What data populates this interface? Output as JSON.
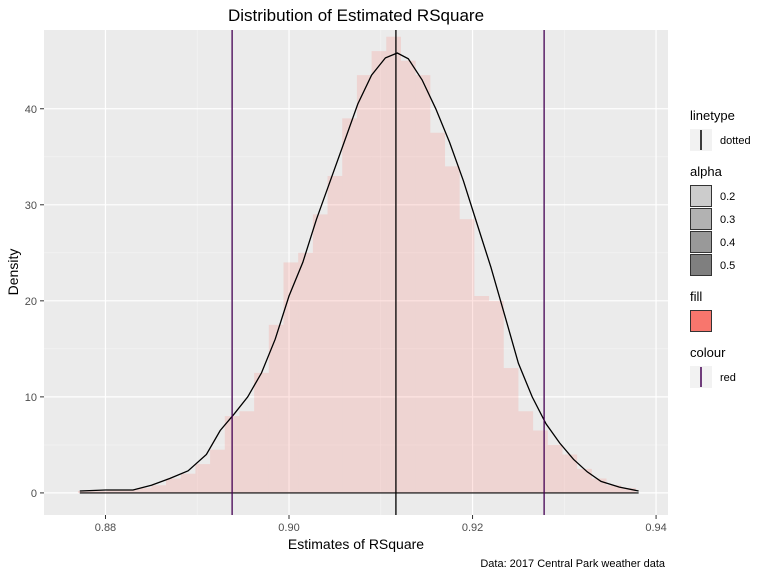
{
  "chart_data": {
    "type": "histogram-density",
    "title": "Distribution of Estimated RSquare",
    "xlabel": "Estimates of RSquare",
    "ylabel": "Density",
    "caption": "Data: 2017 Central Park weather data",
    "xlim": [
      0.8733,
      0.9413
    ],
    "ylim": [
      -2.3,
      48.2
    ],
    "x_ticks": [
      0.88,
      0.9,
      0.92,
      0.94
    ],
    "x_tick_labels": [
      "0.88",
      "0.90",
      "0.92",
      "0.94"
    ],
    "y_ticks": [
      0,
      10,
      20,
      30,
      40
    ],
    "y_tick_labels": [
      "0",
      "10",
      "20",
      "30",
      "40"
    ],
    "grid": true,
    "legend_position": "right",
    "histogram": {
      "fill": "#F8766D",
      "alpha": 0.2,
      "bin_width": 0.0016,
      "bins": [
        {
          "x": 0.8778,
          "y": 0.2
        },
        {
          "x": 0.8794,
          "y": 0.2
        },
        {
          "x": 0.881,
          "y": 0.3
        },
        {
          "x": 0.8826,
          "y": 0.3
        },
        {
          "x": 0.8842,
          "y": 0.5
        },
        {
          "x": 0.8858,
          "y": 0.8
        },
        {
          "x": 0.8874,
          "y": 1.5
        },
        {
          "x": 0.889,
          "y": 2.0
        },
        {
          "x": 0.8906,
          "y": 3.0
        },
        {
          "x": 0.8922,
          "y": 4.5
        },
        {
          "x": 0.8938,
          "y": 8.0
        },
        {
          "x": 0.8954,
          "y": 8.5
        },
        {
          "x": 0.897,
          "y": 12.5
        },
        {
          "x": 0.8986,
          "y": 17.5
        },
        {
          "x": 0.9002,
          "y": 24.0
        },
        {
          "x": 0.9018,
          "y": 25.0
        },
        {
          "x": 0.9034,
          "y": 29.0
        },
        {
          "x": 0.905,
          "y": 33.0
        },
        {
          "x": 0.9066,
          "y": 39.0
        },
        {
          "x": 0.9082,
          "y": 43.5
        },
        {
          "x": 0.9098,
          "y": 46.0
        },
        {
          "x": 0.9114,
          "y": 47.5
        },
        {
          "x": 0.913,
          "y": 45.0
        },
        {
          "x": 0.9146,
          "y": 43.5
        },
        {
          "x": 0.9162,
          "y": 37.5
        },
        {
          "x": 0.9178,
          "y": 34.0
        },
        {
          "x": 0.9194,
          "y": 28.5
        },
        {
          "x": 0.921,
          "y": 20.5
        },
        {
          "x": 0.9226,
          "y": 20.0
        },
        {
          "x": 0.9242,
          "y": 13.0
        },
        {
          "x": 0.9258,
          "y": 8.5
        },
        {
          "x": 0.9274,
          "y": 6.5
        },
        {
          "x": 0.929,
          "y": 5.0
        },
        {
          "x": 0.9306,
          "y": 4.0
        },
        {
          "x": 0.9322,
          "y": 2.5
        },
        {
          "x": 0.9338,
          "y": 1.5
        },
        {
          "x": 0.9354,
          "y": 0.8
        },
        {
          "x": 0.937,
          "y": 0.5
        }
      ]
    },
    "density_curve": {
      "color": "#000000",
      "points": [
        [
          0.8772,
          0.2
        ],
        [
          0.88,
          0.3
        ],
        [
          0.883,
          0.3
        ],
        [
          0.885,
          0.8
        ],
        [
          0.887,
          1.5
        ],
        [
          0.889,
          2.3
        ],
        [
          0.891,
          4.0
        ],
        [
          0.8925,
          6.5
        ],
        [
          0.894,
          8.2
        ],
        [
          0.8955,
          10.0
        ],
        [
          0.897,
          12.5
        ],
        [
          0.8985,
          16.0
        ],
        [
          0.9,
          20.5
        ],
        [
          0.9015,
          24.0
        ],
        [
          0.903,
          28.5
        ],
        [
          0.9045,
          32.5
        ],
        [
          0.906,
          36.5
        ],
        [
          0.9075,
          40.5
        ],
        [
          0.909,
          43.5
        ],
        [
          0.9105,
          45.3
        ],
        [
          0.9118,
          45.8
        ],
        [
          0.913,
          45.2
        ],
        [
          0.9145,
          43.0
        ],
        [
          0.916,
          40.0
        ],
        [
          0.9175,
          36.5
        ],
        [
          0.919,
          32.5
        ],
        [
          0.9205,
          28.0
        ],
        [
          0.922,
          23.5
        ],
        [
          0.9235,
          18.5
        ],
        [
          0.925,
          13.5
        ],
        [
          0.9265,
          10.0
        ],
        [
          0.928,
          7.2
        ],
        [
          0.9295,
          5.2
        ],
        [
          0.931,
          3.5
        ],
        [
          0.9325,
          2.2
        ],
        [
          0.934,
          1.2
        ],
        [
          0.936,
          0.6
        ],
        [
          0.9381,
          0.2
        ]
      ]
    },
    "vlines": [
      {
        "x": 0.8938,
        "color": "#440154"
      },
      {
        "x": 0.91165,
        "color": "#000000"
      },
      {
        "x": 0.9278,
        "color": "#440154"
      }
    ],
    "legend": [
      {
        "title": "linetype",
        "entries": [
          {
            "label": "dotted",
            "key": "vline",
            "color": "#000000"
          }
        ]
      },
      {
        "title": "alpha",
        "entries": [
          {
            "label": "0.2",
            "key": "square",
            "fill": "#000000",
            "alpha": 0.2
          },
          {
            "label": "0.3",
            "key": "square",
            "fill": "#000000",
            "alpha": 0.3
          },
          {
            "label": "0.4",
            "key": "square",
            "fill": "#000000",
            "alpha": 0.4
          },
          {
            "label": "0.5",
            "key": "square",
            "fill": "#000000",
            "alpha": 0.5
          }
        ]
      },
      {
        "title": "fill",
        "entries": [
          {
            "label": "",
            "key": "square",
            "fill": "#F8766D",
            "alpha": 1
          }
        ]
      },
      {
        "title": "colour",
        "entries": [
          {
            "label": "red",
            "key": "vline",
            "color": "#440154"
          }
        ]
      }
    ]
  }
}
